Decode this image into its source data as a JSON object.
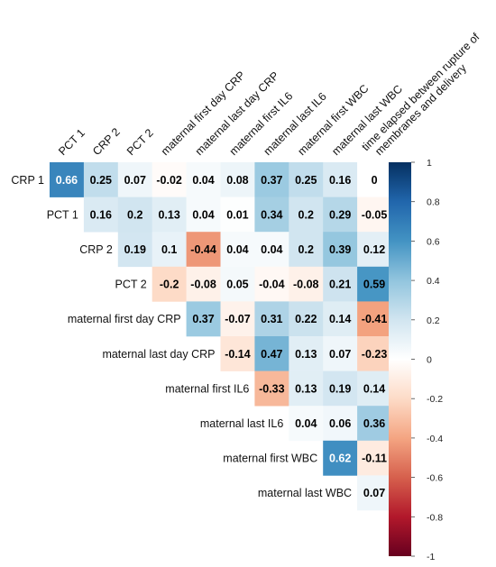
{
  "chart_data": {
    "type": "heatmap",
    "title": "",
    "columns": [
      "PCT 1",
      "CRP 2",
      "PCT 2",
      "maternal first day CRP",
      "maternal last day CRP",
      "maternal first IL6",
      "maternal last IL6",
      "maternal first WBC",
      "maternal last WBC",
      "time elapsed between rupture of membranes and delivery"
    ],
    "rows": [
      "CRP 1",
      "PCT 1",
      "CRP 2",
      "PCT 2",
      "maternal first day CRP",
      "maternal last day CRP",
      "maternal first IL6",
      "maternal last IL6",
      "maternal first WBC",
      "maternal last WBC"
    ],
    "values": [
      [
        0.66,
        0.25,
        0.07,
        -0.02,
        0.04,
        0.08,
        0.37,
        0.25,
        0.16,
        0
      ],
      [
        null,
        0.16,
        0.2,
        0.13,
        0.04,
        0.01,
        0.34,
        0.2,
        0.29,
        -0.05
      ],
      [
        null,
        null,
        0.19,
        0.1,
        -0.44,
        0.04,
        0.04,
        0.2,
        0.39,
        0.12
      ],
      [
        null,
        null,
        null,
        -0.2,
        -0.08,
        0.05,
        -0.04,
        -0.08,
        0.21,
        0.59
      ],
      [
        null,
        null,
        null,
        null,
        0.37,
        -0.07,
        0.31,
        0.22,
        0.14,
        -0.41
      ],
      [
        null,
        null,
        null,
        null,
        null,
        -0.14,
        0.47,
        0.13,
        0.07,
        -0.23
      ],
      [
        null,
        null,
        null,
        null,
        null,
        null,
        -0.33,
        0.13,
        0.19,
        0.14
      ],
      [
        null,
        null,
        null,
        null,
        null,
        null,
        null,
        0.04,
        0.06,
        0.36
      ],
      [
        null,
        null,
        null,
        null,
        null,
        null,
        null,
        null,
        0.62,
        -0.11
      ],
      [
        null,
        null,
        null,
        null,
        null,
        null,
        null,
        null,
        null,
        0.07
      ]
    ],
    "value_labels": [
      [
        "0.66",
        "0.25",
        "0.07",
        "-0.02",
        "0.04",
        "0.08",
        "0.37",
        "0.25",
        "0.16",
        "0"
      ],
      [
        null,
        "0.16",
        "0.2",
        "0.13",
        "0.04",
        "0.01",
        "0.34",
        "0.2",
        "0.29",
        "-0.05"
      ],
      [
        null,
        null,
        "0.19",
        "0.1",
        "-0.44",
        "0.04",
        "0.04",
        "0.2",
        "0.39",
        "0.12"
      ],
      [
        null,
        null,
        null,
        "-0.2",
        "-0.08",
        "0.05",
        "-0.04",
        "-0.08",
        "0.21",
        "0.59"
      ],
      [
        null,
        null,
        null,
        null,
        "0.37",
        "-0.07",
        "0.31",
        "0.22",
        "0.14",
        "-0.41"
      ],
      [
        null,
        null,
        null,
        null,
        null,
        "-0.14",
        "0.47",
        "0.13",
        "0.07",
        "-0.23"
      ],
      [
        null,
        null,
        null,
        null,
        null,
        null,
        "-0.33",
        "0.13",
        "0.19",
        "0.14"
      ],
      [
        null,
        null,
        null,
        null,
        null,
        null,
        null,
        "0.04",
        "0.06",
        "0.36"
      ],
      [
        null,
        null,
        null,
        null,
        null,
        null,
        null,
        null,
        "0.62",
        "-0.11"
      ],
      [
        null,
        null,
        null,
        null,
        null,
        null,
        null,
        null,
        null,
        "0.07"
      ]
    ],
    "colorbar": {
      "range": [
        -1,
        1
      ],
      "tick_values": [
        1,
        0.8,
        0.6,
        0.4,
        0.2,
        0,
        -0.2,
        -0.4,
        -0.6,
        -0.8,
        -1
      ],
      "tick_labels": [
        "1",
        "0.8",
        "0.6",
        "0.4",
        "0.2",
        "0",
        "-0.2",
        "-0.4",
        "-0.6",
        "-0.8",
        "-1"
      ],
      "colors": {
        "low": "#67001f",
        "mid": "#ffffff",
        "high": "#053061"
      },
      "stops": [
        "#67001f",
        "#b2182b",
        "#d6604d",
        "#f4a582",
        "#fddbc7",
        "#ffffff",
        "#d1e5f0",
        "#92c5de",
        "#4393c3",
        "#2166ac",
        "#053061"
      ]
    }
  }
}
